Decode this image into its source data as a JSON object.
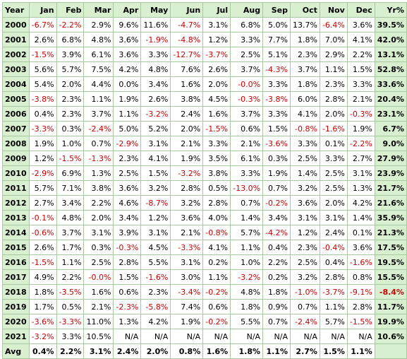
{
  "headers": [
    "Year",
    "Jan",
    "Feb",
    "Mar",
    "Apr",
    "May",
    "Jun",
    "Jul",
    "Aug",
    "Sep",
    "Oct",
    "Nov",
    "Dec",
    "Yr%"
  ],
  "rows": [
    {
      "year": "2000",
      "months": [
        "-6.7%",
        "-2.2%",
        "2.9%",
        "9.6%",
        "11.6%",
        "-4.7%",
        "3.1%",
        "6.8%",
        "5.0%",
        "13.7%",
        "-6.4%",
        "3.6%"
      ],
      "total": "39.5%"
    },
    {
      "year": "2001",
      "months": [
        "2.6%",
        "6.8%",
        "4.8%",
        "3.6%",
        "-1.9%",
        "-4.8%",
        "1.2%",
        "3.3%",
        "7.7%",
        "1.8%",
        "7.0%",
        "4.1%"
      ],
      "total": "42.0%"
    },
    {
      "year": "2002",
      "months": [
        "-1.5%",
        "3.9%",
        "6.1%",
        "3.6%",
        "3.3%",
        "-12.7%",
        "-3.7%",
        "2.5%",
        "5.1%",
        "2.3%",
        "2.9%",
        "2.2%"
      ],
      "total": "13.1%"
    },
    {
      "year": "2003",
      "months": [
        "5.6%",
        "5.7%",
        "7.5%",
        "4.2%",
        "4.8%",
        "7.6%",
        "2.6%",
        "3.7%",
        "-4.3%",
        "3.7%",
        "1.1%",
        "1.5%"
      ],
      "total": "52.8%"
    },
    {
      "year": "2004",
      "months": [
        "5.4%",
        "2.0%",
        "4.4%",
        "0.0%",
        "3.4%",
        "1.6%",
        "2.0%",
        "-0.0%",
        "3.3%",
        "1.8%",
        "2.3%",
        "3.3%"
      ],
      "total": "33.6%"
    },
    {
      "year": "2005",
      "months": [
        "-3.8%",
        "2.3%",
        "1.1%",
        "1.9%",
        "2.6%",
        "3.8%",
        "4.5%",
        "-0.3%",
        "-3.8%",
        "6.0%",
        "2.8%",
        "2.1%"
      ],
      "total": "20.4%"
    },
    {
      "year": "2006",
      "months": [
        "0.4%",
        "2.3%",
        "3.7%",
        "1.1%",
        "-3.2%",
        "2.4%",
        "1.6%",
        "3.7%",
        "3.3%",
        "4.1%",
        "2.0%",
        "-0.3%"
      ],
      "total": "23.1%"
    },
    {
      "year": "2007",
      "months": [
        "-3.3%",
        "0.3%",
        "-2.4%",
        "5.0%",
        "5.2%",
        "2.0%",
        "-1.5%",
        "0.6%",
        "1.5%",
        "-0.8%",
        "-1.6%",
        "1.9%"
      ],
      "total": "6.7%"
    },
    {
      "year": "2008",
      "months": [
        "1.9%",
        "1.0%",
        "0.7%",
        "-2.9%",
        "3.1%",
        "2.1%",
        "3.3%",
        "2.1%",
        "-3.6%",
        "3.3%",
        "0.1%",
        "-2.2%"
      ],
      "total": "9.0%"
    },
    {
      "year": "2009",
      "months": [
        "1.2%",
        "-1.5%",
        "-1.3%",
        "2.3%",
        "4.1%",
        "1.9%",
        "3.5%",
        "6.1%",
        "0.3%",
        "2.5%",
        "3.3%",
        "2.7%"
      ],
      "total": "27.9%"
    },
    {
      "year": "2010",
      "months": [
        "-2.9%",
        "6.9%",
        "1.3%",
        "2.5%",
        "1.5%",
        "-3.2%",
        "3.8%",
        "3.3%",
        "1.9%",
        "1.4%",
        "2.5%",
        "3.1%"
      ],
      "total": "23.9%"
    },
    {
      "year": "2011",
      "months": [
        "5.7%",
        "7.1%",
        "3.8%",
        "3.6%",
        "3.2%",
        "2.8%",
        "0.5%",
        "-13.0%",
        "0.7%",
        "3.2%",
        "2.5%",
        "1.3%"
      ],
      "total": "21.7%"
    },
    {
      "year": "2012",
      "months": [
        "2.7%",
        "3.4%",
        "2.2%",
        "4.6%",
        "-8.7%",
        "3.2%",
        "2.8%",
        "0.7%",
        "-0.2%",
        "3.6%",
        "2.0%",
        "4.2%"
      ],
      "total": "21.6%"
    },
    {
      "year": "2013",
      "months": [
        "-0.1%",
        "4.8%",
        "2.0%",
        "3.4%",
        "1.2%",
        "3.6%",
        "4.0%",
        "1.4%",
        "3.4%",
        "3.1%",
        "3.1%",
        "1.4%"
      ],
      "total": "35.9%"
    },
    {
      "year": "2014",
      "months": [
        "-0.6%",
        "3.7%",
        "3.1%",
        "3.9%",
        "3.1%",
        "2.1%",
        "-0.8%",
        "5.7%",
        "-4.2%",
        "1.2%",
        "2.4%",
        "0.1%"
      ],
      "total": "21.3%"
    },
    {
      "year": "2015",
      "months": [
        "2.6%",
        "1.7%",
        "0.3%",
        "-0.3%",
        "4.5%",
        "-3.3%",
        "4.1%",
        "1.1%",
        "0.4%",
        "2.3%",
        "-0.4%",
        "3.6%"
      ],
      "total": "17.5%"
    },
    {
      "year": "2016",
      "months": [
        "-1.5%",
        "1.1%",
        "2.5%",
        "2.8%",
        "5.5%",
        "3.1%",
        "0.2%",
        "1.0%",
        "2.2%",
        "2.5%",
        "0.4%",
        "-1.6%"
      ],
      "total": "19.5%"
    },
    {
      "year": "2017",
      "months": [
        "4.9%",
        "2.2%",
        "-0.0%",
        "1.5%",
        "-1.6%",
        "3.0%",
        "1.1%",
        "-3.2%",
        "0.2%",
        "3.2%",
        "2.8%",
        "0.8%"
      ],
      "total": "15.5%"
    },
    {
      "year": "2018",
      "months": [
        "1.8%",
        "-3.5%",
        "1.6%",
        "0.6%",
        "2.3%",
        "-3.4%",
        "-0.2%",
        "4.8%",
        "1.8%",
        "-1.0%",
        "-3.7%",
        "-9.1%"
      ],
      "total": "-8.4%"
    },
    {
      "year": "2019",
      "months": [
        "1.7%",
        "0.5%",
        "2.1%",
        "-2.3%",
        "-5.8%",
        "7.4%",
        "0.6%",
        "1.8%",
        "0.9%",
        "0.7%",
        "1.1%",
        "2.8%"
      ],
      "total": "11.7%"
    },
    {
      "year": "2020",
      "months": [
        "-3.6%",
        "-3.3%",
        "11.0%",
        "1.3%",
        "4.2%",
        "1.9%",
        "-0.2%",
        "5.5%",
        "0.7%",
        "-2.4%",
        "5.7%",
        "-1.5%"
      ],
      "total": "19.9%"
    },
    {
      "year": "2021",
      "months": [
        "-3.2%",
        "3.3%",
        "10.5%",
        "N/A",
        "N/A",
        "N/A",
        "N/A",
        "N/A",
        "N/A",
        "N/A",
        "N/A",
        "N/A"
      ],
      "total": "10.6%"
    }
  ],
  "avg": {
    "label": "Avg",
    "months": [
      "0.4%",
      "2.2%",
      "3.1%",
      "2.4%",
      "2.0%",
      "0.8%",
      "1.6%",
      "1.8%",
      "1.1%",
      "2.7%",
      "1.5%",
      "1.1%"
    ],
    "total": ""
  },
  "colors": {
    "header_bg": "#d8f0d0",
    "border": "#a8c8a0",
    "negative": "#cc0000",
    "positive": "#000000"
  }
}
